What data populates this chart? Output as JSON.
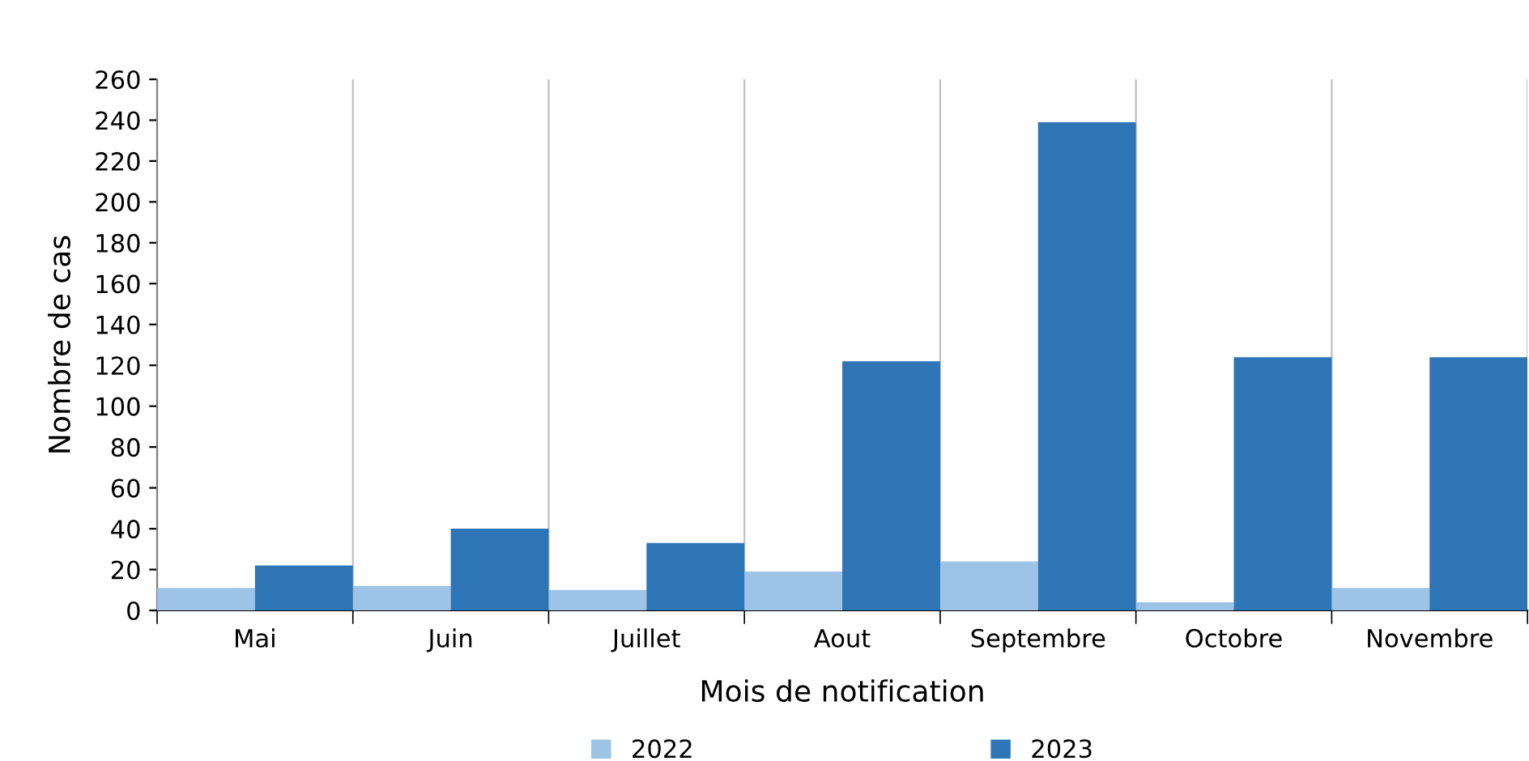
{
  "chart_data": {
    "type": "bar",
    "xlabel": "Mois de notification",
    "ylabel": "Nombre de cas",
    "categories": [
      "Mai",
      "Juin",
      "Juillet",
      "Aout",
      "Septembre",
      "Octobre",
      "Novembre"
    ],
    "series": [
      {
        "name": "2022",
        "color": "#9dc3e6",
        "values": [
          11,
          12,
          10,
          19,
          24,
          4,
          11
        ]
      },
      {
        "name": "2023",
        "color": "#2e75b6",
        "values": [
          22,
          40,
          33,
          122,
          239,
          124,
          124
        ]
      }
    ],
    "ylim": [
      0,
      260
    ],
    "yticks": [
      0,
      20,
      40,
      60,
      80,
      100,
      120,
      140,
      160,
      180,
      200,
      220,
      240,
      260
    ],
    "grid": "x",
    "legend": "bottom"
  }
}
